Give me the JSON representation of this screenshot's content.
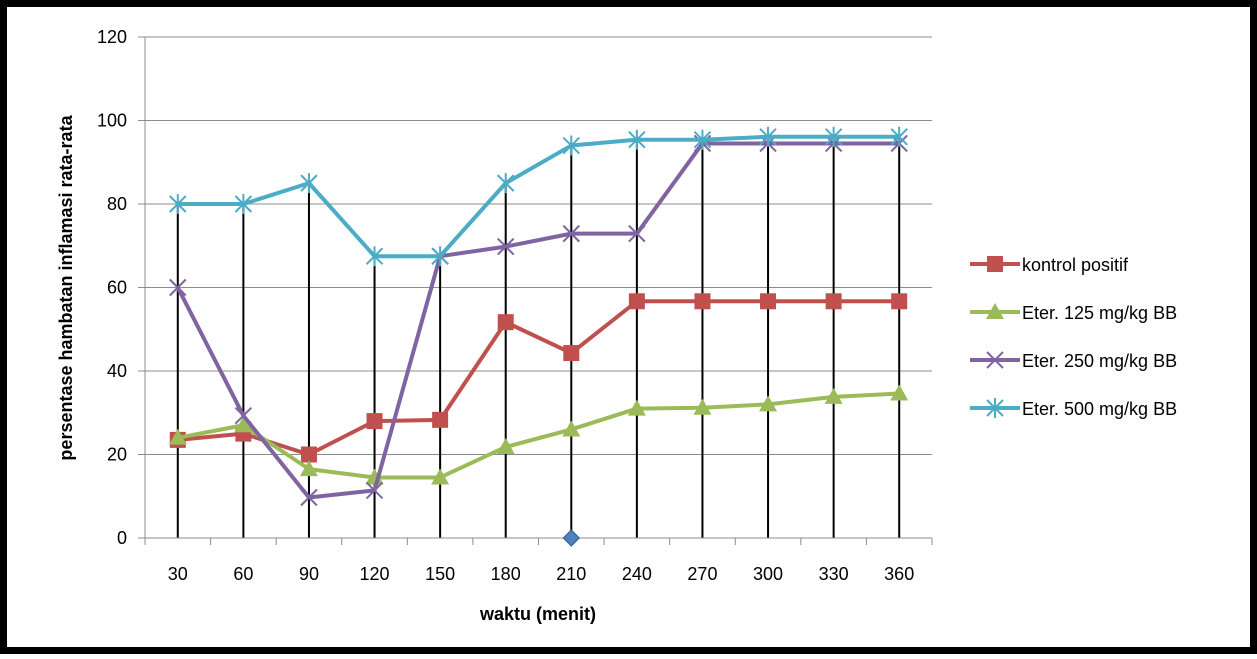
{
  "chart_data": {
    "type": "line",
    "title": "",
    "xlabel": "waktu (menit)",
    "ylabel": "persentase hambatan inflamasi rata-rata",
    "categories": [
      "30",
      "60",
      "90",
      "120",
      "150",
      "180",
      "210",
      "240",
      "270",
      "300",
      "330",
      "360"
    ],
    "ylim": [
      0,
      120
    ],
    "yticks": [
      0,
      20,
      40,
      60,
      80,
      100,
      120
    ],
    "grid": "horizontal",
    "legend_position": "right",
    "series": [
      {
        "name": "kontrol positif",
        "color": "#c0504d",
        "marker": "square",
        "values": [
          23.5,
          25,
          20,
          28,
          28.3,
          51.7,
          44.3,
          56.7,
          56.7,
          56.7,
          56.7,
          56.7
        ]
      },
      {
        "name": "Eter. 125 mg/kg BB",
        "color": "#9bbb59",
        "marker": "triangle",
        "values": [
          24,
          27,
          16.5,
          14.5,
          14.5,
          21.8,
          26,
          31,
          31.2,
          32,
          33.8,
          34.6
        ]
      },
      {
        "name": "Eter. 250 mg/kg BB",
        "color": "#8064a2",
        "marker": "x",
        "values": [
          60,
          29.3,
          9.7,
          11.4,
          67.5,
          69.8,
          72.9,
          72.9,
          94.5,
          94.5,
          94.5,
          94.5
        ]
      },
      {
        "name": "Eter. 500 mg/kg BB",
        "color": "#4bacc6",
        "marker": "asterisk",
        "values": [
          80,
          80,
          85,
          67.5,
          67.5,
          85,
          94,
          95.4,
          95.4,
          96.1,
          96.1,
          96.1
        ]
      }
    ],
    "extra_point": {
      "category": "210",
      "value": 0,
      "color": "#4f81bd",
      "marker": "diamond"
    }
  }
}
